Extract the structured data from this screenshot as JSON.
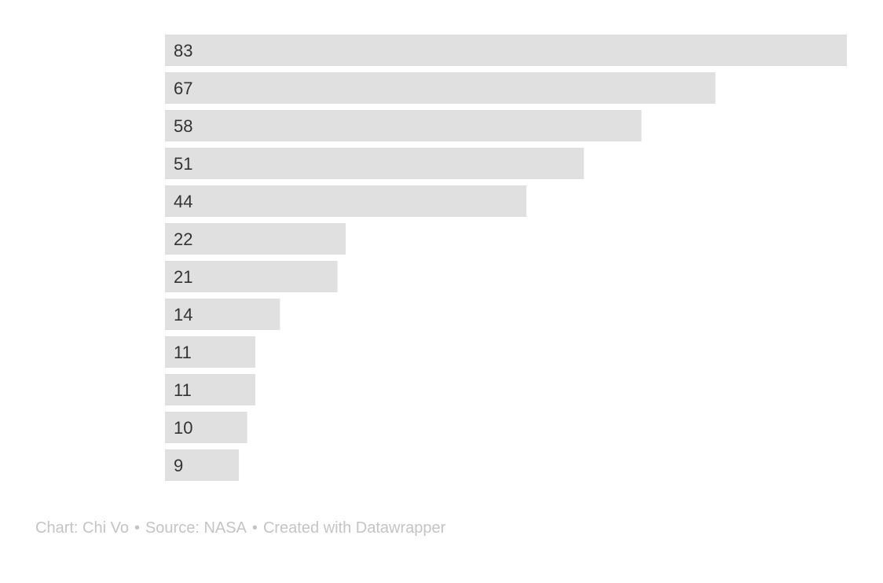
{
  "chart_data": {
    "type": "bar",
    "orientation": "horizontal",
    "categories": [
      "",
      "",
      "",
      "",
      "",
      "",
      "",
      "",
      "",
      "",
      "",
      ""
    ],
    "values": [
      83,
      67,
      58,
      51,
      44,
      22,
      21,
      14,
      11,
      11,
      10,
      9
    ],
    "title": "",
    "xlabel": "",
    "ylabel": "",
    "xlim": [
      0,
      83
    ],
    "grid": false,
    "legend": "none",
    "bar_color": "#e0e0e0",
    "label_color": "#333333"
  },
  "footer": {
    "chart_credit": "Chart: Chi Vo",
    "separator": "•",
    "source": "Source: NASA",
    "created_with": "Created with Datawrapper"
  }
}
